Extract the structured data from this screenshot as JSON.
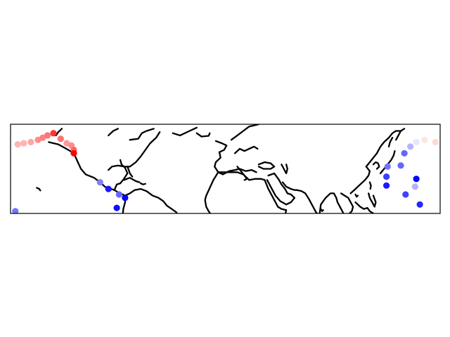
{
  "map": {
    "projection": "plate-carree",
    "lon_range": [
      -180,
      180
    ],
    "lat_range": [
      -10,
      30
    ],
    "coastline_color": "#000000",
    "frame_color": "#000000",
    "background": "#ffffff",
    "gridlines": false,
    "colormap": "bwr",
    "color_scale": [
      -1,
      1
    ]
  },
  "chart_data": {
    "type": "scatter",
    "xlabel": "",
    "ylabel": "",
    "xlim": [
      -180,
      180
    ],
    "ylim": [
      -10,
      30
    ],
    "points": [
      {
        "lon": -174,
        "lat": 21,
        "value": 0.3
      },
      {
        "lon": -169,
        "lat": 21.5,
        "value": 0.3
      },
      {
        "lon": -163,
        "lat": 22,
        "value": 0.35
      },
      {
        "lon": -157,
        "lat": 23,
        "value": 0.45
      },
      {
        "lon": -153,
        "lat": 24,
        "value": 0.5
      },
      {
        "lon": -149,
        "lat": 25,
        "value": 0.55
      },
      {
        "lon": -144,
        "lat": 26,
        "value": 0.8
      },
      {
        "lon": -138,
        "lat": 23.5,
        "value": 0.55
      },
      {
        "lon": -133,
        "lat": 21.5,
        "value": 0.4
      },
      {
        "lon": -129,
        "lat": 20.5,
        "value": 0.45
      },
      {
        "lon": -127,
        "lat": 18.5,
        "value": 0.6
      },
      {
        "lon": -127,
        "lat": 17,
        "value": 1.0
      },
      {
        "lon": -105,
        "lat": 4,
        "value": -0.5
      },
      {
        "lon": -98,
        "lat": 1,
        "value": -0.9
      },
      {
        "lon": -89,
        "lat": -1.5,
        "value": -0.6
      },
      {
        "lon": -84,
        "lat": -3,
        "value": -1.0
      },
      {
        "lon": -91,
        "lat": -7.5,
        "value": -0.95
      },
      {
        "lon": -176,
        "lat": -9,
        "value": -0.55
      },
      {
        "lon": 136,
        "lat": 11,
        "value": -0.55
      },
      {
        "lon": 135,
        "lat": 6.5,
        "value": -0.75
      },
      {
        "lon": 135,
        "lat": 2.5,
        "value": -0.9
      },
      {
        "lon": 147,
        "lat": 11.5,
        "value": -0.6
      },
      {
        "lon": 150,
        "lat": 17,
        "value": -0.6
      },
      {
        "lon": 155,
        "lat": 20,
        "value": -0.3
      },
      {
        "lon": 160,
        "lat": 22,
        "value": -0.1
      },
      {
        "lon": 167,
        "lat": 23,
        "value": 0.1
      },
      {
        "lon": 176,
        "lat": 22,
        "value": 0.15
      },
      {
        "lon": 160,
        "lat": 5.5,
        "value": -1.0
      },
      {
        "lon": 159,
        "lat": 2,
        "value": -0.3
      },
      {
        "lon": 151,
        "lat": -1.5,
        "value": -0.75
      },
      {
        "lon": 163,
        "lat": -6,
        "value": -0.85
      }
    ]
  }
}
